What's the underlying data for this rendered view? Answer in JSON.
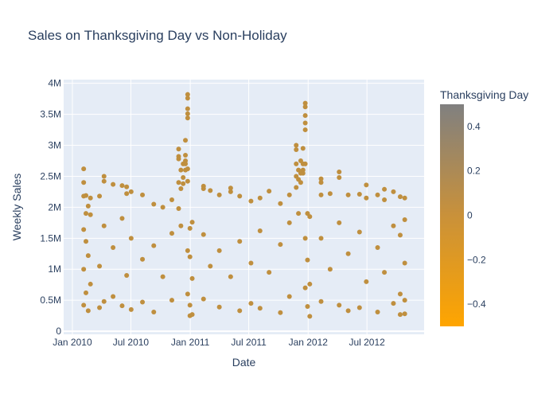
{
  "chart_data": {
    "type": "scatter",
    "title": "Sales on Thanksgiving Day vs Non-Holiday",
    "xlabel": "Date",
    "ylabel": "Weekly Sales",
    "x_range": [
      "2009-12-05",
      "2012-12-25"
    ],
    "ylim": [
      -50000,
      4060000
    ],
    "x_ticks": [
      {
        "date": "2010-01-01",
        "label": "Jan 2010"
      },
      {
        "date": "2010-07-01",
        "label": "Jul 2010"
      },
      {
        "date": "2011-01-01",
        "label": "Jan 2011"
      },
      {
        "date": "2011-07-01",
        "label": "Jul 2011"
      },
      {
        "date": "2012-01-01",
        "label": "Jan 2012"
      },
      {
        "date": "2012-07-01",
        "label": "Jul 2012"
      }
    ],
    "y_ticks": [
      {
        "value": 0,
        "label": "0"
      },
      {
        "value": 500000,
        "label": "0.5M"
      },
      {
        "value": 1000000,
        "label": "1M"
      },
      {
        "value": 1500000,
        "label": "1.5M"
      },
      {
        "value": 2000000,
        "label": "2M"
      },
      {
        "value": 2500000,
        "label": "2.5M"
      },
      {
        "value": 3000000,
        "label": "3M"
      },
      {
        "value": 3500000,
        "label": "3.5M"
      },
      {
        "value": 4000000,
        "label": "4M"
      }
    ],
    "grid": true,
    "marker_color": "#bf8f3f",
    "colorbar": {
      "title": "Thanksgiving Day",
      "range": [
        -0.5,
        0.5
      ],
      "ticks": [
        {
          "value": 0.4,
          "label": "0.4"
        },
        {
          "value": 0.2,
          "label": "0.2"
        },
        {
          "value": 0,
          "label": "0"
        },
        {
          "value": -0.2,
          "label": "−0.2"
        },
        {
          "value": -0.4,
          "label": "−0.4"
        }
      ],
      "color_top": "#808080",
      "color_bottom": "#ffa500"
    },
    "series": [
      {
        "points": [
          [
            "2010-02-05",
            2620000
          ],
          [
            "2010-02-05",
            2400000
          ],
          [
            "2010-02-05",
            2180000
          ],
          [
            "2010-02-05",
            1640000
          ],
          [
            "2010-02-05",
            1000000
          ],
          [
            "2010-02-05",
            420000
          ],
          [
            "2010-02-12",
            2190000
          ],
          [
            "2010-02-12",
            1900000
          ],
          [
            "2010-02-12",
            1450000
          ],
          [
            "2010-02-12",
            620000
          ],
          [
            "2010-02-19",
            2020000
          ],
          [
            "2010-02-19",
            1220000
          ],
          [
            "2010-02-19",
            330000
          ],
          [
            "2010-02-26",
            2150000
          ],
          [
            "2010-02-26",
            1880000
          ],
          [
            "2010-02-26",
            760000
          ],
          [
            "2010-03-26",
            2180000
          ],
          [
            "2010-03-26",
            1050000
          ],
          [
            "2010-03-26",
            380000
          ],
          [
            "2010-04-09",
            2500000
          ],
          [
            "2010-04-09",
            2420000
          ],
          [
            "2010-04-09",
            1700000
          ],
          [
            "2010-04-09",
            480000
          ],
          [
            "2010-05-07",
            2370000
          ],
          [
            "2010-05-07",
            1350000
          ],
          [
            "2010-05-07",
            560000
          ],
          [
            "2010-06-04",
            2350000
          ],
          [
            "2010-06-04",
            1820000
          ],
          [
            "2010-06-04",
            410000
          ],
          [
            "2010-06-18",
            2330000
          ],
          [
            "2010-06-18",
            2220000
          ],
          [
            "2010-06-18",
            900000
          ],
          [
            "2010-07-02",
            2250000
          ],
          [
            "2010-07-02",
            1500000
          ],
          [
            "2010-07-02",
            350000
          ],
          [
            "2010-08-06",
            2200000
          ],
          [
            "2010-08-06",
            1160000
          ],
          [
            "2010-08-06",
            470000
          ],
          [
            "2010-09-10",
            2050000
          ],
          [
            "2010-09-10",
            1380000
          ],
          [
            "2010-09-10",
            310000
          ],
          [
            "2010-10-08",
            2000000
          ],
          [
            "2010-10-08",
            880000
          ],
          [
            "2010-11-05",
            2120000
          ],
          [
            "2010-11-05",
            1580000
          ],
          [
            "2010-11-05",
            500000
          ],
          [
            "2010-11-26",
            2940000
          ],
          [
            "2010-11-26",
            2820000
          ],
          [
            "2010-11-26",
            2780000
          ],
          [
            "2010-11-26",
            2400000
          ],
          [
            "2010-11-26",
            1980000
          ],
          [
            "2010-12-03",
            2600000
          ],
          [
            "2010-12-03",
            2300000
          ],
          [
            "2010-12-03",
            1700000
          ],
          [
            "2010-12-10",
            2700000
          ],
          [
            "2010-12-10",
            2480000
          ],
          [
            "2010-12-10",
            2380000
          ],
          [
            "2010-12-17",
            3080000
          ],
          [
            "2010-12-17",
            2840000
          ],
          [
            "2010-12-17",
            2750000
          ],
          [
            "2010-12-17",
            2700000
          ],
          [
            "2010-12-17",
            2600000
          ],
          [
            "2010-12-24",
            3820000
          ],
          [
            "2010-12-24",
            3760000
          ],
          [
            "2010-12-24",
            3590000
          ],
          [
            "2010-12-24",
            3510000
          ],
          [
            "2010-12-24",
            3440000
          ],
          [
            "2010-12-24",
            2620000
          ],
          [
            "2010-12-24",
            2420000
          ],
          [
            "2010-12-24",
            1300000
          ],
          [
            "2010-12-24",
            600000
          ],
          [
            "2010-12-31",
            1660000
          ],
          [
            "2010-12-31",
            1200000
          ],
          [
            "2010-12-31",
            420000
          ],
          [
            "2010-12-31",
            250000
          ],
          [
            "2011-01-07",
            1760000
          ],
          [
            "2011-01-07",
            850000
          ],
          [
            "2011-01-07",
            270000
          ],
          [
            "2011-02-11",
            2340000
          ],
          [
            "2011-02-11",
            2300000
          ],
          [
            "2011-02-11",
            1560000
          ],
          [
            "2011-02-11",
            520000
          ],
          [
            "2011-03-04",
            2270000
          ],
          [
            "2011-03-04",
            1050000
          ],
          [
            "2011-04-01",
            2200000
          ],
          [
            "2011-04-01",
            1300000
          ],
          [
            "2011-04-01",
            390000
          ],
          [
            "2011-05-06",
            2310000
          ],
          [
            "2011-05-06",
            2250000
          ],
          [
            "2011-05-06",
            880000
          ],
          [
            "2011-06-03",
            2180000
          ],
          [
            "2011-06-03",
            1450000
          ],
          [
            "2011-06-03",
            330000
          ],
          [
            "2011-07-08",
            2100000
          ],
          [
            "2011-07-08",
            1100000
          ],
          [
            "2011-07-08",
            450000
          ],
          [
            "2011-08-05",
            2150000
          ],
          [
            "2011-08-05",
            1620000
          ],
          [
            "2011-08-05",
            370000
          ],
          [
            "2011-09-02",
            2260000
          ],
          [
            "2011-09-02",
            950000
          ],
          [
            "2011-10-07",
            2060000
          ],
          [
            "2011-10-07",
            1400000
          ],
          [
            "2011-10-07",
            300000
          ],
          [
            "2011-11-04",
            2200000
          ],
          [
            "2011-11-04",
            1750000
          ],
          [
            "2011-11-04",
            560000
          ],
          [
            "2011-11-25",
            3000000
          ],
          [
            "2011-11-25",
            2930000
          ],
          [
            "2011-11-25",
            2700000
          ],
          [
            "2011-11-25",
            2500000
          ],
          [
            "2011-11-25",
            2320000
          ],
          [
            "2011-12-02",
            2600000
          ],
          [
            "2011-12-02",
            2450000
          ],
          [
            "2011-12-02",
            1900000
          ],
          [
            "2011-12-09",
            2750000
          ],
          [
            "2011-12-09",
            2550000
          ],
          [
            "2011-12-09",
            2400000
          ],
          [
            "2011-12-16",
            2950000
          ],
          [
            "2011-12-16",
            2700000
          ],
          [
            "2011-12-16",
            2600000
          ],
          [
            "2011-12-16",
            2550000
          ],
          [
            "2011-12-23",
            3680000
          ],
          [
            "2011-12-23",
            3620000
          ],
          [
            "2011-12-23",
            3480000
          ],
          [
            "2011-12-23",
            3360000
          ],
          [
            "2011-12-23",
            3250000
          ],
          [
            "2011-12-23",
            2700000
          ],
          [
            "2011-12-23",
            1500000
          ],
          [
            "2011-12-23",
            700000
          ],
          [
            "2011-12-30",
            1900000
          ],
          [
            "2011-12-30",
            1150000
          ],
          [
            "2011-12-30",
            400000
          ],
          [
            "2012-01-06",
            1850000
          ],
          [
            "2012-01-06",
            760000
          ],
          [
            "2012-01-06",
            240000
          ],
          [
            "2012-02-10",
            2460000
          ],
          [
            "2012-02-10",
            2400000
          ],
          [
            "2012-02-10",
            2200000
          ],
          [
            "2012-02-10",
            1500000
          ],
          [
            "2012-02-10",
            480000
          ],
          [
            "2012-03-09",
            2220000
          ],
          [
            "2012-03-09",
            1000000
          ],
          [
            "2012-04-06",
            2570000
          ],
          [
            "2012-04-06",
            2480000
          ],
          [
            "2012-04-06",
            1750000
          ],
          [
            "2012-04-06",
            420000
          ],
          [
            "2012-05-04",
            2200000
          ],
          [
            "2012-05-04",
            1250000
          ],
          [
            "2012-05-04",
            330000
          ],
          [
            "2012-06-08",
            2210000
          ],
          [
            "2012-06-08",
            1600000
          ],
          [
            "2012-06-08",
            380000
          ],
          [
            "2012-06-29",
            2360000
          ],
          [
            "2012-06-29",
            2150000
          ],
          [
            "2012-06-29",
            800000
          ],
          [
            "2012-08-03",
            2200000
          ],
          [
            "2012-08-03",
            1350000
          ],
          [
            "2012-08-03",
            310000
          ],
          [
            "2012-08-24",
            2290000
          ],
          [
            "2012-08-24",
            2120000
          ],
          [
            "2012-08-24",
            950000
          ],
          [
            "2012-09-21",
            2250000
          ],
          [
            "2012-09-21",
            1700000
          ],
          [
            "2012-09-21",
            450000
          ],
          [
            "2012-10-12",
            2170000
          ],
          [
            "2012-10-12",
            1550000
          ],
          [
            "2012-10-12",
            600000
          ],
          [
            "2012-10-12",
            270000
          ],
          [
            "2012-10-26",
            2150000
          ],
          [
            "2012-10-26",
            1800000
          ],
          [
            "2012-10-26",
            1100000
          ],
          [
            "2012-10-26",
            500000
          ],
          [
            "2012-10-26",
            280000
          ]
        ]
      }
    ]
  }
}
